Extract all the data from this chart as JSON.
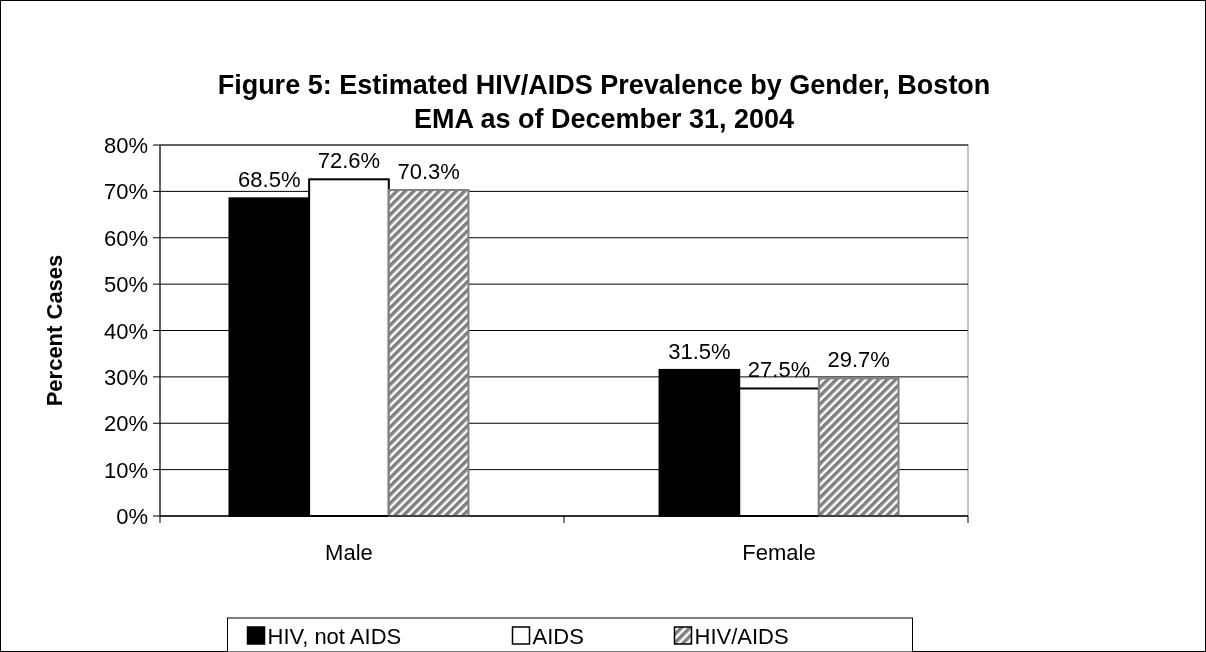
{
  "chart_data": {
    "type": "bar",
    "title": "Figure 5: Estimated HIV/AIDS Prevalence by Gender, Boston EMA as of December 31, 2004",
    "ylabel": "Percent Cases",
    "categories": [
      "Male",
      "Female"
    ],
    "series": [
      {
        "name": "HIV, not AIDS",
        "color": "#000000",
        "values": [
          68.5,
          31.5
        ],
        "value_labels": [
          "68.5%",
          "31.5%"
        ]
      },
      {
        "name": "AIDS",
        "color": "#ffffff",
        "values": [
          72.6,
          27.5
        ],
        "value_labels": [
          "72.6%",
          "27.5%"
        ]
      },
      {
        "name": "HIV/AIDS",
        "color": "#808080",
        "values": [
          70.3,
          29.7
        ],
        "value_labels": [
          "70.3%",
          "29.7%"
        ]
      }
    ],
    "ylim": [
      0,
      80
    ],
    "yticks": [
      {
        "value": 0,
        "label": "0%"
      },
      {
        "value": 10,
        "label": "10%"
      },
      {
        "value": 20,
        "label": "20%"
      },
      {
        "value": 30,
        "label": "30%"
      },
      {
        "value": 40,
        "label": "40%"
      },
      {
        "value": 50,
        "label": "50%"
      },
      {
        "value": 60,
        "label": "60%"
      },
      {
        "value": 70,
        "label": "70%"
      },
      {
        "value": 80,
        "label": "80%"
      }
    ],
    "grid": "y",
    "legend": "bottom"
  }
}
